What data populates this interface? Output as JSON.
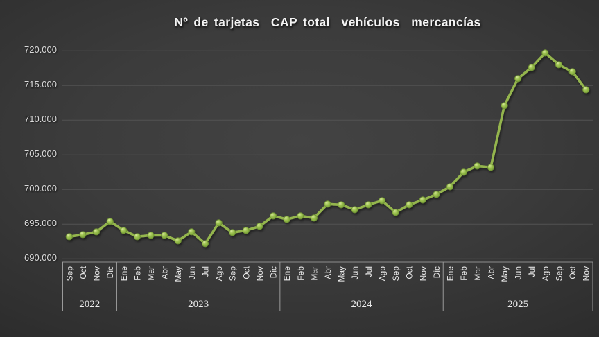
{
  "chart_data": {
    "type": "line",
    "title": "Nº de tarjetas  CAP total  vehículos  mercancías",
    "xlabel": "",
    "ylabel": "",
    "ylim": [
      690000,
      720000
    ],
    "ytick_step": 5000,
    "grid": true,
    "legend": "none",
    "series_name": "Nº de tarjetas CAP total vehículos mercancías",
    "series_color": "#94b54d",
    "marker_color": "#9cc14f",
    "yticks": [
      {
        "value": 690000,
        "label": "690.000"
      },
      {
        "value": 695000,
        "label": "695.000"
      },
      {
        "value": 700000,
        "label": "700.000"
      },
      {
        "value": 705000,
        "label": "705.000"
      },
      {
        "value": 710000,
        "label": "710.000"
      },
      {
        "value": 715000,
        "label": "715.000"
      },
      {
        "value": 720000,
        "label": "720.000"
      }
    ],
    "groups": [
      {
        "year": "2022",
        "months": [
          "Sep",
          "Oct",
          "Nov",
          "Dic"
        ],
        "values": [
          693200,
          693500,
          693900,
          695400
        ]
      },
      {
        "year": "2023",
        "months": [
          "Ene",
          "Feb",
          "Mar",
          "Abr",
          "May",
          "Jun",
          "Jul",
          "Ago",
          "Sep",
          "Oct",
          "Nov",
          "Dic"
        ],
        "values": [
          694100,
          693200,
          693400,
          693400,
          692600,
          693900,
          692200,
          695200,
          693800,
          694100,
          694700,
          696200
        ]
      },
      {
        "year": "2024",
        "months": [
          "Ene",
          "Feb",
          "Mar",
          "Abr",
          "May",
          "Jun",
          "Jul",
          "Ago",
          "Sep",
          "Oct",
          "Nov",
          "Dic"
        ],
        "values": [
          695700,
          696200,
          695900,
          697900,
          697800,
          697100,
          697800,
          698400,
          696700,
          697800,
          698500,
          699300
        ]
      },
      {
        "year": "2025",
        "months": [
          "Ene",
          "Feb",
          "Mar",
          "Abr",
          "May",
          "Jun",
          "Jul",
          "Ago",
          "Sep",
          "Oct",
          "Nov"
        ],
        "values": [
          700400,
          702500,
          703400,
          703200,
          712100,
          716000,
          717600,
          719700,
          718000,
          717000,
          714400
        ]
      }
    ]
  }
}
